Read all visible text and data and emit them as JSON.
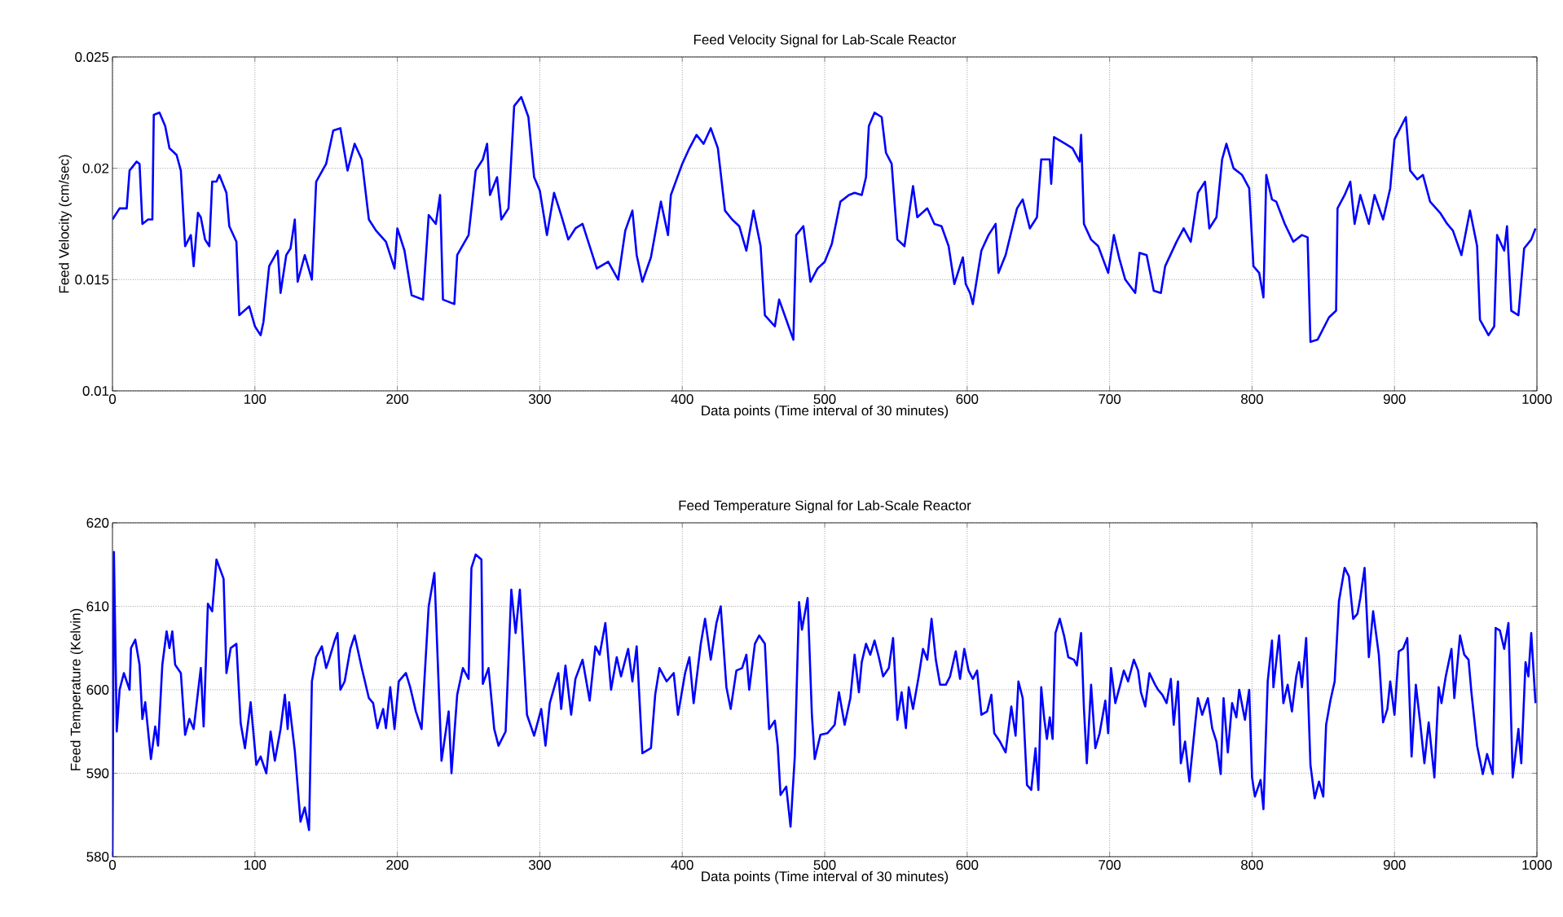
{
  "chart_data": [
    {
      "type": "line",
      "title": "Feed Velocity Signal for Lab-Scale Reactor",
      "xlabel": "Data points (Time interval of 30 minutes)",
      "ylabel": "Feed Velocity (cm/sec)",
      "color": "#0000ff",
      "grid": true,
      "xlim": [
        0,
        1000
      ],
      "ylim": [
        0.01,
        0.025
      ],
      "xticks": [
        0,
        100,
        200,
        300,
        400,
        500,
        600,
        700,
        800,
        900,
        1000
      ],
      "yticks": [
        0.01,
        0.015,
        0.02,
        0.025
      ],
      "x": [
        0,
        5,
        10,
        12,
        17,
        19,
        21,
        25,
        28,
        29,
        33,
        37,
        40,
        45,
        48,
        51,
        55,
        57,
        60,
        62,
        65,
        68,
        70,
        73,
        75,
        80,
        82,
        87,
        89,
        96,
        100,
        104,
        106,
        110,
        116,
        118,
        122,
        125,
        128,
        130,
        135,
        140,
        143,
        150,
        155,
        160,
        165,
        170,
        175,
        180,
        185,
        192,
        198,
        200,
        205,
        210,
        218,
        222,
        227,
        230,
        232,
        240,
        242,
        250,
        255,
        260,
        263,
        265,
        270,
        273,
        278,
        282,
        287,
        292,
        296,
        300,
        305,
        310,
        315,
        320,
        325,
        330,
        335,
        340,
        348,
        355,
        360,
        365,
        368,
        372,
        378,
        385,
        390,
        392,
        400,
        405,
        410,
        415,
        420,
        425,
        430,
        435,
        440,
        445,
        450,
        455,
        458,
        465,
        468,
        473,
        478,
        480,
        485,
        490,
        495,
        500,
        505,
        511,
        517,
        521,
        526,
        529,
        531,
        535,
        540,
        543,
        547,
        551,
        556,
        562,
        565,
        572,
        577,
        582,
        587,
        591,
        597,
        599,
        602,
        604,
        610,
        615,
        620,
        622,
        627,
        635,
        639,
        644,
        649,
        652,
        658,
        659,
        661,
        669,
        674,
        679,
        680,
        682,
        687,
        692,
        699,
        703,
        707,
        711,
        718,
        721,
        726,
        731,
        736,
        739,
        747,
        752,
        757,
        762,
        767,
        770,
        775,
        779,
        782,
        787,
        793,
        798,
        801,
        805,
        808,
        810,
        814,
        817,
        823,
        829,
        835,
        839,
        841,
        846,
        854,
        859,
        860,
        865,
        869,
        872,
        876,
        882,
        886,
        892,
        897,
        900,
        904,
        908,
        911,
        916,
        920,
        925,
        932,
        937,
        941,
        947,
        953,
        958,
        960,
        966,
        970,
        972,
        977,
        979,
        982,
        987,
        991,
        996,
        999
      ],
      "values": [
        0.0177,
        0.0182,
        0.0182,
        0.0199,
        0.0203,
        0.0202,
        0.0175,
        0.0177,
        0.0177,
        0.0224,
        0.0225,
        0.0219,
        0.0209,
        0.0206,
        0.0199,
        0.0165,
        0.017,
        0.0156,
        0.018,
        0.0178,
        0.0168,
        0.0165,
        0.0194,
        0.0194,
        0.0197,
        0.0189,
        0.0174,
        0.0167,
        0.0134,
        0.0138,
        0.0129,
        0.0125,
        0.0131,
        0.0156,
        0.0163,
        0.0144,
        0.0161,
        0.0164,
        0.0177,
        0.0149,
        0.0161,
        0.015,
        0.0194,
        0.0202,
        0.0217,
        0.0218,
        0.0199,
        0.0211,
        0.0204,
        0.0177,
        0.0172,
        0.0167,
        0.0155,
        0.0173,
        0.0163,
        0.0143,
        0.0141,
        0.0179,
        0.0175,
        0.0188,
        0.0141,
        0.0139,
        0.0161,
        0.017,
        0.0199,
        0.0204,
        0.0211,
        0.0188,
        0.0196,
        0.0177,
        0.0182,
        0.0228,
        0.0232,
        0.0223,
        0.0196,
        0.019,
        0.017,
        0.0189,
        0.0179,
        0.0168,
        0.0173,
        0.0175,
        0.0165,
        0.0155,
        0.0158,
        0.015,
        0.0172,
        0.0181,
        0.0161,
        0.0149,
        0.016,
        0.0185,
        0.017,
        0.0188,
        0.0202,
        0.0209,
        0.0215,
        0.0211,
        0.0218,
        0.0209,
        0.0181,
        0.0177,
        0.0174,
        0.0163,
        0.0181,
        0.0165,
        0.0134,
        0.0129,
        0.0141,
        0.0132,
        0.0123,
        0.017,
        0.0174,
        0.0149,
        0.0155,
        0.0158,
        0.0166,
        0.0185,
        0.0188,
        0.0189,
        0.0188,
        0.0196,
        0.0219,
        0.0225,
        0.0223,
        0.0207,
        0.0202,
        0.0168,
        0.0165,
        0.0192,
        0.0178,
        0.0182,
        0.0175,
        0.0174,
        0.0165,
        0.0148,
        0.016,
        0.0148,
        0.0144,
        0.0139,
        0.0163,
        0.017,
        0.0175,
        0.0153,
        0.0161,
        0.0182,
        0.0186,
        0.0173,
        0.0178,
        0.0204,
        0.0204,
        0.0193,
        0.0214,
        0.0211,
        0.0209,
        0.0203,
        0.0215,
        0.0175,
        0.0168,
        0.0165,
        0.0153,
        0.017,
        0.0159,
        0.015,
        0.0144,
        0.0162,
        0.0161,
        0.0145,
        0.0144,
        0.0156,
        0.0167,
        0.0173,
        0.0167,
        0.0189,
        0.0194,
        0.0173,
        0.0178,
        0.0204,
        0.0211,
        0.02,
        0.0197,
        0.0191,
        0.0156,
        0.0153,
        0.0142,
        0.0197,
        0.0186,
        0.0185,
        0.0175,
        0.0167,
        0.017,
        0.0169,
        0.0122,
        0.0123,
        0.0133,
        0.0136,
        0.0182,
        0.0188,
        0.0194,
        0.0175,
        0.0188,
        0.0175,
        0.0188,
        0.0177,
        0.0191,
        0.0213,
        0.0218,
        0.0223,
        0.0199,
        0.0195,
        0.0197,
        0.0185,
        0.018,
        0.0175,
        0.0172,
        0.0161,
        0.0181,
        0.0165,
        0.0132,
        0.0125,
        0.0129,
        0.017,
        0.0163,
        0.0174,
        0.0136,
        0.0134,
        0.0164,
        0.0168,
        0.0173
      ]
    },
    {
      "type": "line",
      "title": "Feed Temperature Signal for Lab-Scale Reactor",
      "xlabel": "Data points (Time interval of 30 minutes)",
      "ylabel": "Feed Temperature (Kelvin)",
      "color": "#0000ff",
      "grid": true,
      "xlim": [
        0,
        1000
      ],
      "ylim": [
        580,
        620
      ],
      "xticks": [
        0,
        100,
        200,
        300,
        400,
        500,
        600,
        700,
        800,
        900,
        1000
      ],
      "yticks": [
        580,
        590,
        600,
        610,
        620
      ],
      "x": [
        0,
        1,
        3,
        5,
        8,
        12,
        13,
        16,
        19,
        21,
        23,
        27,
        30,
        32,
        35,
        38,
        40,
        42,
        44,
        48,
        51,
        54,
        57,
        62,
        64,
        67,
        70,
        73,
        78,
        80,
        83,
        87,
        90,
        93,
        97,
        101,
        104,
        108,
        111,
        114,
        118,
        121,
        123,
        124,
        128,
        132,
        135,
        138,
        140,
        143,
        147,
        150,
        152,
        156,
        158,
        160,
        163,
        167,
        170,
        175,
        180,
        183,
        186,
        190,
        192,
        195,
        198,
        201,
        206,
        209,
        213,
        217,
        222,
        226,
        231,
        236,
        238,
        242,
        246,
        250,
        252,
        255,
        259,
        260,
        264,
        268,
        271,
        276,
        280,
        283,
        286,
        291,
        296,
        301,
        304,
        307,
        313,
        315,
        318,
        322,
        325,
        330,
        335,
        339,
        342,
        346,
        350,
        354,
        357,
        362,
        365,
        368,
        372,
        378,
        381,
        384,
        389,
        394,
        397,
        402,
        405,
        408,
        413,
        416,
        420,
        424,
        427,
        431,
        434,
        438,
        442,
        445,
        447,
        451,
        454,
        458,
        461,
        465,
        467,
        469,
        473,
        476,
        479,
        482,
        484,
        488,
        491,
        493,
        497,
        502,
        507,
        510,
        514,
        518,
        521,
        524,
        526,
        529,
        532,
        535,
        538,
        541,
        545,
        548,
        551,
        554,
        557,
        559,
        562,
        566,
        569,
        572,
        575,
        578,
        581,
        585,
        588,
        592,
        595,
        598,
        601,
        604,
        607,
        610,
        614,
        617,
        619,
        623,
        627,
        631,
        634,
        636,
        639,
        642,
        645,
        648,
        650,
        652,
        654,
        656,
        658,
        660,
        662,
        665,
        668,
        671,
        675,
        677,
        680,
        682,
        684,
        687,
        690,
        693,
        697,
        699,
        701,
        704,
        707,
        710,
        713,
        717,
        720,
        722,
        725,
        728,
        732,
        734,
        737,
        740,
        743,
        745,
        748,
        750,
        753,
        756,
        760,
        762,
        765,
        769,
        772,
        775,
        778,
        780,
        783,
        786,
        789,
        791,
        795,
        798,
        800,
        802,
        806,
        808,
        811,
        814,
        815,
        819,
        822,
        825,
        828,
        831,
        833,
        835,
        838,
        841,
        844,
        847,
        850,
        852,
        855,
        858,
        861,
        865,
        868,
        871,
        874,
        876,
        879,
        882,
        885,
        889,
        892,
        895,
        897,
        900,
        903,
        906,
        909,
        912,
        915,
        918,
        921,
        924,
        928,
        931,
        933,
        936,
        940,
        942,
        946,
        949,
        952,
        954,
        958,
        962,
        965,
        969,
        971,
        974,
        977,
        980,
        983,
        987,
        989,
        992,
        994,
        996,
        999
      ],
      "values": [
        580,
        616.5,
        595,
        600,
        602,
        600,
        605,
        606,
        603,
        596.5,
        598.5,
        591.7,
        595.6,
        593.3,
        603,
        607,
        605,
        607,
        603,
        602,
        594.6,
        596.5,
        595.3,
        602.6,
        595.6,
        610.3,
        609.4,
        615.6,
        613.3,
        602,
        605,
        605.5,
        596,
        593,
        598.5,
        591,
        592,
        590,
        595,
        591.5,
        595.3,
        599.4,
        595.3,
        598.5,
        592.7,
        584.2,
        585.9,
        583.2,
        601,
        603.9,
        605.2,
        602.6,
        603.6,
        605.9,
        606.8,
        600,
        601,
        604.9,
        606.5,
        602.6,
        599,
        598.4,
        595.4,
        597.7,
        595.4,
        600.3,
        595.3,
        601,
        602,
        600.3,
        597.4,
        595.3,
        610,
        614,
        591.5,
        597.4,
        590,
        599.4,
        602.6,
        601.3,
        614.6,
        616.2,
        615.6,
        600.7,
        602.6,
        595.3,
        593.3,
        595,
        612,
        606.8,
        612,
        597,
        594.5,
        597.7,
        593.3,
        598.4,
        602,
        597.7,
        602.9,
        597,
        601.3,
        603.6,
        598.7,
        605.2,
        604.2,
        608,
        600,
        603.9,
        601.6,
        604.9,
        601,
        605.2,
        592.4,
        593,
        599.4,
        602.6,
        601,
        602,
        597,
        602,
        603.9,
        598.4,
        605.5,
        608.5,
        603.6,
        608,
        610,
        600.3,
        597.7,
        602.3,
        602.6,
        604.2,
        600,
        605.5,
        606.5,
        605.5,
        595.3,
        596.3,
        593.3,
        587.4,
        588.4,
        583.6,
        592,
        610.5,
        607.2,
        611,
        597,
        591.7,
        594.6,
        594.8,
        595.8,
        599.7,
        595.8,
        599,
        604.2,
        599.7,
        603.3,
        605.5,
        604.2,
        605.9,
        603.9,
        601.6,
        602.6,
        606.2,
        596.4,
        599.7,
        595.4,
        600.3,
        597.7,
        601.6,
        604.9,
        603.6,
        608.5,
        603.6,
        600.6,
        600.6,
        601.6,
        604.6,
        601.3,
        604.9,
        602.3,
        601.3,
        602.3,
        597,
        597.4,
        599.4,
        594.8,
        593.8,
        592.5,
        598,
        594.5,
        601,
        599,
        588.6,
        588,
        593,
        588,
        600.3,
        596.7,
        594.1,
        596.7,
        594.1,
        606.8,
        608.5,
        606.5,
        603.9,
        603.6,
        602.9,
        606.8,
        597.7,
        591.2,
        600.6,
        593,
        594.8,
        598.7,
        594.8,
        602.6,
        598.4,
        600.3,
        602.3,
        601,
        603.6,
        602.3,
        599.7,
        598,
        602,
        600.6,
        600,
        599.4,
        598.4,
        601.3,
        595.8,
        601,
        591.2,
        593.8,
        589,
        595.8,
        599,
        597,
        599,
        595.4,
        593.8,
        589.9,
        599,
        592.5,
        598.4,
        596.7,
        600,
        596.4,
        600,
        589.5,
        587.2,
        589.2,
        585.7,
        601,
        605.9,
        600.3,
        606.5,
        598.4,
        600.6,
        597.4,
        601.6,
        603.3,
        600.3,
        606.2,
        591,
        587,
        589,
        587.2,
        595.8,
        598.7,
        601,
        610.6,
        614.6,
        613.6,
        608.5,
        609.1,
        611,
        614.6,
        603.9,
        609.4,
        604.2,
        596.1,
        597.7,
        601,
        597,
        604.6,
        604.9,
        606.2,
        592,
        600.6,
        596.1,
        591.2,
        596.1,
        589.5,
        600.3,
        598.4,
        601.6,
        604.9,
        599,
        606.5,
        604.2,
        603.6,
        599.7,
        593.3,
        589.9,
        592.3,
        589.9,
        607.4,
        607.1,
        604.9,
        608,
        589.5,
        595.3,
        591.2,
        603.3,
        601.6,
        606.8,
        598.4
      ]
    }
  ]
}
